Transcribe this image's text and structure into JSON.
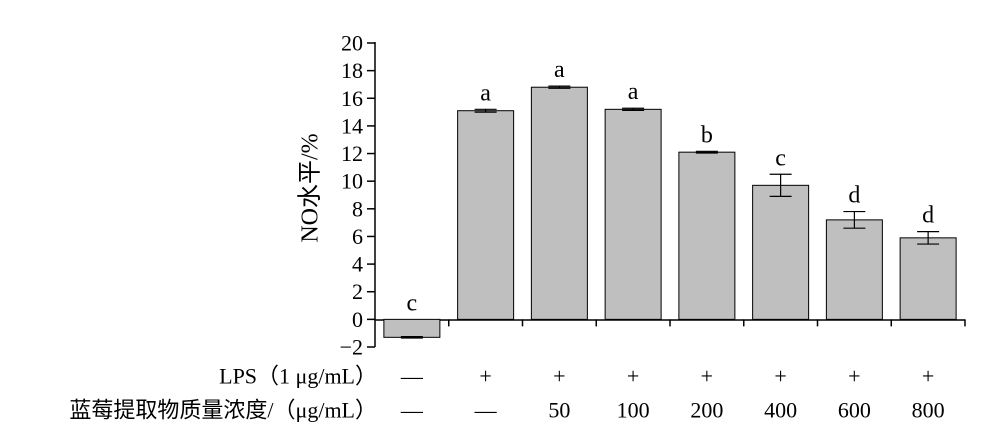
{
  "chart_data": {
    "type": "bar",
    "ylabel": "NO水平/%",
    "ylim": [
      -2,
      20
    ],
    "yticks": [
      -2,
      0,
      2,
      4,
      6,
      8,
      10,
      12,
      14,
      16,
      18,
      20
    ],
    "values": [
      -1.3,
      15.1,
      16.8,
      15.2,
      12.1,
      9.7,
      7.2,
      5.9
    ],
    "errors": [
      0.05,
      0.1,
      0.08,
      0.08,
      0.06,
      0.8,
      0.6,
      0.45
    ],
    "significance": [
      "c",
      "a",
      "a",
      "a",
      "b",
      "c",
      "d",
      "d"
    ],
    "bar_color": "#bfbfbf",
    "grid": false,
    "rows": [
      {
        "label": "LPS（1 μg/mL）",
        "values": [
          "—",
          "+",
          "+",
          "+",
          "+",
          "+",
          "+",
          "+"
        ]
      },
      {
        "label": "蓝莓提取物质量浓度/（μg/mL）",
        "values": [
          "—",
          "—",
          "50",
          "100",
          "200",
          "400",
          "600",
          "800"
        ]
      }
    ]
  }
}
